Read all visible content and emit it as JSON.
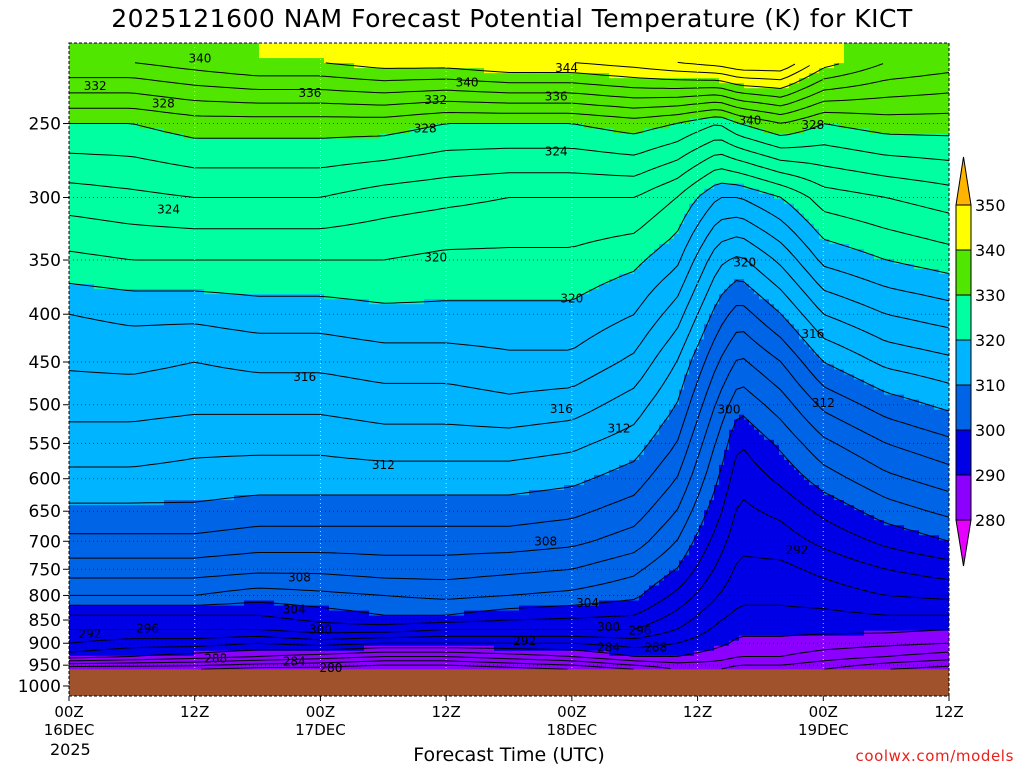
{
  "chart_data": {
    "type": "heatmap",
    "title": "2025121600 NAM Forecast Potential Temperature (K) for KICT",
    "xlabel": "Forecast Time (UTC)",
    "ylabel": "",
    "x_ticks": [
      {
        "hour": 0,
        "label": "00Z",
        "sub": "16DEC"
      },
      {
        "hour": 12,
        "label": "12Z",
        "sub": ""
      },
      {
        "hour": 24,
        "label": "00Z",
        "sub": "17DEC"
      },
      {
        "hour": 36,
        "label": "12Z",
        "sub": ""
      },
      {
        "hour": 48,
        "label": "00Z",
        "sub": "18DEC"
      },
      {
        "hour": 60,
        "label": "12Z",
        "sub": ""
      },
      {
        "hour": 72,
        "label": "00Z",
        "sub": "19DEC"
      },
      {
        "hour": 84,
        "label": "12Z",
        "sub": ""
      }
    ],
    "year_label": "2025",
    "xlim": [
      0,
      84
    ],
    "y_ticks": [
      250,
      300,
      350,
      400,
      450,
      500,
      550,
      600,
      650,
      700,
      750,
      800,
      850,
      900,
      950,
      1000
    ],
    "ylim": [
      1025,
      205
    ],
    "y_scale": "log",
    "grid": true,
    "colorbar": {
      "levels": [
        280,
        290,
        300,
        310,
        320,
        330,
        340,
        350
      ],
      "colors": [
        "#e600ff",
        "#8c00ff",
        "#0000e6",
        "#0064e6",
        "#00b4ff",
        "#00ffa0",
        "#50e600",
        "#ffff00",
        "#ffb400"
      ],
      "extend": "both"
    },
    "ground_color": "#a0522d",
    "profile_pressure": [
      960,
      930,
      900,
      870,
      840,
      800,
      750,
      700,
      650,
      600,
      550,
      500,
      450,
      400,
      350,
      300,
      250,
      215
    ],
    "theta_columns": [
      {
        "hour": 0,
        "theta": [
          282,
          291,
          294,
          296,
          298,
          302,
          305,
          307.5,
          309.5,
          311.5,
          313,
          314.8,
          316.3,
          318,
          321.5,
          325,
          330,
          338
        ]
      },
      {
        "hour": 6,
        "theta": [
          282,
          290,
          293,
          296,
          298,
          302,
          305,
          307.5,
          309.5,
          311.5,
          313,
          314.8,
          316.5,
          318.5,
          322,
          325.5,
          330,
          338
        ]
      },
      {
        "hour": 12,
        "theta": [
          282,
          289,
          293,
          296,
          298,
          302,
          305,
          307.5,
          309.5,
          311.3,
          312.5,
          314.5,
          316,
          318.5,
          322,
          326,
          331,
          339
        ]
      },
      {
        "hour": 18,
        "theta": [
          281,
          288,
          292,
          296,
          298,
          301,
          304.5,
          307,
          309,
          311,
          312.5,
          314.5,
          316.5,
          319,
          322,
          326,
          331,
          340
        ]
      },
      {
        "hour": 24,
        "theta": [
          281,
          287,
          293,
          297,
          299,
          301.5,
          304.5,
          307,
          309,
          311,
          312.5,
          314.5,
          316.5,
          319,
          322,
          326,
          331,
          340
        ]
      },
      {
        "hour": 30,
        "theta": [
          280,
          286,
          292,
          297,
          300,
          302,
          305,
          307,
          309,
          311,
          313,
          315,
          317,
          319.5,
          322,
          325,
          331,
          341
        ]
      },
      {
        "hour": 36,
        "theta": [
          280,
          286,
          292,
          296,
          300,
          302.5,
          305,
          307,
          309,
          311,
          313,
          315,
          317,
          319.5,
          321.5,
          324.5,
          330,
          341
        ]
      },
      {
        "hour": 42,
        "theta": [
          281,
          287,
          292,
          296,
          299,
          302,
          304.5,
          307,
          309,
          311,
          313,
          315.5,
          317.5,
          319.5,
          321.5,
          324,
          330,
          342
        ]
      },
      {
        "hour": 48,
        "theta": [
          282,
          288,
          292,
          296,
          298.5,
          301.5,
          304,
          306.5,
          308.5,
          310.5,
          312.5,
          315,
          317.5,
          319.5,
          321.5,
          324,
          330,
          342
        ]
      },
      {
        "hour": 54,
        "theta": [
          284,
          290,
          293,
          296,
          298,
          300.5,
          302.5,
          305,
          307,
          309,
          311,
          313,
          315.5,
          318,
          320.5,
          324,
          331,
          343
        ]
      },
      {
        "hour": 58,
        "theta": [
          286,
          290,
          292,
          294,
          295.5,
          297.5,
          300,
          302,
          304,
          306,
          308,
          310,
          312,
          315,
          318.5,
          322,
          330,
          344
        ]
      },
      {
        "hour": 62,
        "theta": [
          286,
          289,
          290.5,
          291.5,
          292.5,
          294,
          295.5,
          297,
          298.5,
          300,
          301.5,
          303.5,
          306,
          309,
          312.5,
          318,
          328,
          345
        ]
      },
      {
        "hour": 64,
        "theta": [
          285,
          288,
          289.5,
          290.5,
          291.5,
          292.5,
          293.5,
          294.5,
          295.5,
          296.5,
          298,
          300.5,
          303.5,
          307,
          311.5,
          318,
          330,
          346
        ]
      },
      {
        "hour": 68,
        "theta": [
          285,
          288,
          289.5,
          290.5,
          291.5,
          292.5,
          293.5,
          295,
          296.5,
          298.5,
          300.5,
          303,
          306,
          310,
          314.5,
          320,
          332,
          346
        ]
      },
      {
        "hour": 72,
        "theta": [
          284,
          287,
          289,
          290.5,
          291.5,
          293,
          294.5,
          296.5,
          298.5,
          301,
          303.5,
          306.5,
          310,
          314,
          318.5,
          323,
          330,
          341
        ]
      },
      {
        "hour": 78,
        "theta": [
          282,
          286,
          288.5,
          290.5,
          292,
          294,
          296,
          298.5,
          301,
          303.5,
          306,
          309,
          312.5,
          316,
          320,
          324,
          331,
          338
        ]
      },
      {
        "hour": 84,
        "theta": [
          281,
          285,
          288,
          290,
          292,
          294.5,
          297,
          300,
          302.5,
          305,
          307.5,
          310.5,
          313.5,
          317,
          321,
          325,
          331,
          337
        ]
      }
    ],
    "contour_labels": [
      {
        "text": "340",
        "hour": 12.5,
        "p": 213
      },
      {
        "text": "332",
        "hour": 2.5,
        "p": 228
      },
      {
        "text": "336",
        "hour": 23,
        "p": 232
      },
      {
        "text": "340",
        "hour": 38,
        "p": 226
      },
      {
        "text": "344",
        "hour": 47.5,
        "p": 218
      },
      {
        "text": "328",
        "hour": 9,
        "p": 238
      },
      {
        "text": "332",
        "hour": 35,
        "p": 236
      },
      {
        "text": "336",
        "hour": 46.5,
        "p": 234
      },
      {
        "text": "328",
        "hour": 34,
        "p": 253
      },
      {
        "text": "340",
        "hour": 65,
        "p": 248
      },
      {
        "text": "328",
        "hour": 71,
        "p": 251
      },
      {
        "text": "324",
        "hour": 46.5,
        "p": 268
      },
      {
        "text": "324",
        "hour": 9.5,
        "p": 309
      },
      {
        "text": "320",
        "hour": 35,
        "p": 348
      },
      {
        "text": "320",
        "hour": 64.5,
        "p": 352
      },
      {
        "text": "320",
        "hour": 48,
        "p": 385
      },
      {
        "text": "316",
        "hour": 71,
        "p": 420
      },
      {
        "text": "316",
        "hour": 22.5,
        "p": 467
      },
      {
        "text": "316",
        "hour": 47,
        "p": 505
      },
      {
        "text": "312",
        "hour": 52.5,
        "p": 530
      },
      {
        "text": "300",
        "hour": 63,
        "p": 506
      },
      {
        "text": "312",
        "hour": 72,
        "p": 498
      },
      {
        "text": "312",
        "hour": 30,
        "p": 580
      },
      {
        "text": "308",
        "hour": 45.5,
        "p": 700
      },
      {
        "text": "308",
        "hour": 22,
        "p": 765
      },
      {
        "text": "292",
        "hour": 69.5,
        "p": 715
      },
      {
        "text": "304",
        "hour": 21.5,
        "p": 828
      },
      {
        "text": "304",
        "hour": 49.5,
        "p": 815
      },
      {
        "text": "300",
        "hour": 24,
        "p": 870
      },
      {
        "text": "300",
        "hour": 51.5,
        "p": 865
      },
      {
        "text": "296",
        "hour": 54.5,
        "p": 872
      },
      {
        "text": "296",
        "hour": 7.5,
        "p": 868
      },
      {
        "text": "292",
        "hour": 2,
        "p": 880
      },
      {
        "text": "292",
        "hour": 43.5,
        "p": 895
      },
      {
        "text": "284",
        "hour": 51.5,
        "p": 910
      },
      {
        "text": "288",
        "hour": 56,
        "p": 910
      },
      {
        "text": "288",
        "hour": 14,
        "p": 935
      },
      {
        "text": "284",
        "hour": 21.5,
        "p": 942
      },
      {
        "text": "280",
        "hour": 25,
        "p": 957
      }
    ]
  },
  "credit": "coolwx.com/models"
}
